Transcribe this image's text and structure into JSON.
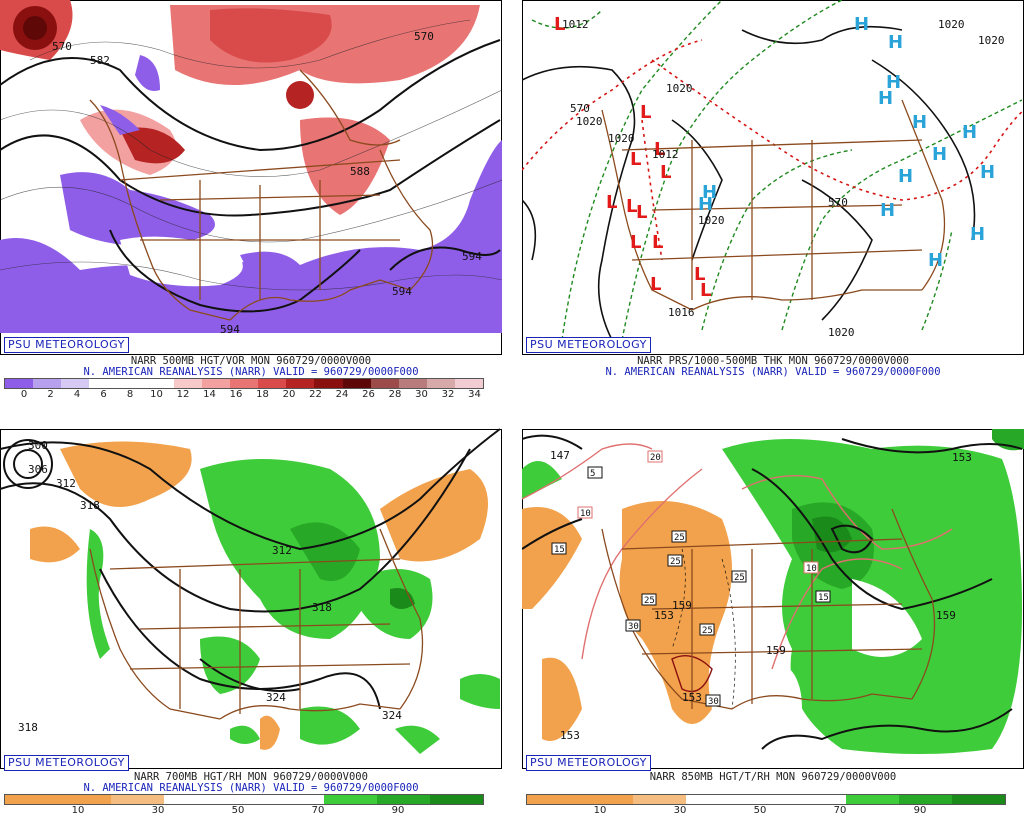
{
  "panels": {
    "p1": {
      "badge": "PSU METEOROLOGY",
      "line1": "NARR 500MB HGT/VOR MON 960729/0000V000",
      "line2": "N. AMERICAN REANALYSIS (NARR) VALID = 960729/0000F000",
      "colorbar_labels": [
        "0",
        "2",
        "4",
        "6",
        "8",
        "10",
        "12",
        "14",
        "16",
        "18",
        "20",
        "22",
        "24",
        "26",
        "28",
        "30",
        "32",
        "34"
      ],
      "contour_labels": [
        "570",
        "582",
        "588",
        "594",
        "594",
        "594",
        "570"
      ]
    },
    "p2": {
      "badge": "PSU METEOROLOGY",
      "line1": "NARR PRS/1000-500MB THK MON 960729/0000V000",
      "line2": "N. AMERICAN REANALYSIS (NARR) VALID = 960729/0000F000",
      "contour_labels": [
        "1012",
        "1020",
        "1020",
        "1020",
        "1020",
        "1020",
        "1012",
        "1020",
        "1020",
        "570",
        "570",
        "1016"
      ]
    },
    "p3": {
      "badge": "PSU METEOROLOGY",
      "line1": "NARR 700MB HGT/RH MON 960729/0000V000",
      "line2": "N. AMERICAN REANALYSIS (NARR) VALID = 960729/0000F000",
      "colorbar_labels": [
        "10",
        "30",
        "50",
        "70",
        "90"
      ],
      "contour_labels": [
        "300",
        "306",
        "312",
        "318",
        "312",
        "318",
        "324",
        "324",
        "318"
      ]
    },
    "p4": {
      "line1": "NARR 850MB HGT/T/RH MON 960729/0000V000",
      "badge": "PSU METEOROLOGY",
      "colorbar_labels": [
        "10",
        "30",
        "50",
        "70",
        "90"
      ],
      "contour_labels": [
        "147",
        "153",
        "159",
        "159",
        "153",
        "153",
        "159",
        "153"
      ],
      "box_labels": [
        "20",
        "5",
        "10",
        "15",
        "25",
        "25",
        "25",
        "25",
        "30",
        "10",
        "15",
        "30",
        "25"
      ]
    }
  },
  "colors": {
    "vor_scale": [
      "#8f5ee8",
      "#b7a1ee",
      "#d6c9f4",
      "#ffffff",
      "#ffffff",
      "#ffffff",
      "#f8c9c9",
      "#f2a0a0",
      "#e87474",
      "#d94a4a",
      "#b52323",
      "#8a1010",
      "#5e0808",
      "#9c4a4a",
      "#b97c7c",
      "#d8a9a9",
      "#f1cdd3"
    ],
    "rh_scale": [
      "#f2a24c",
      "#f2a24c",
      "#f5bd80",
      "#ffffff",
      "#ffffff",
      "#ffffff",
      "#3fcc3a",
      "#27a827",
      "#1a8a1a"
    ],
    "map_brown": "#8b4a1e",
    "psu_blue": "#1a24b8"
  }
}
